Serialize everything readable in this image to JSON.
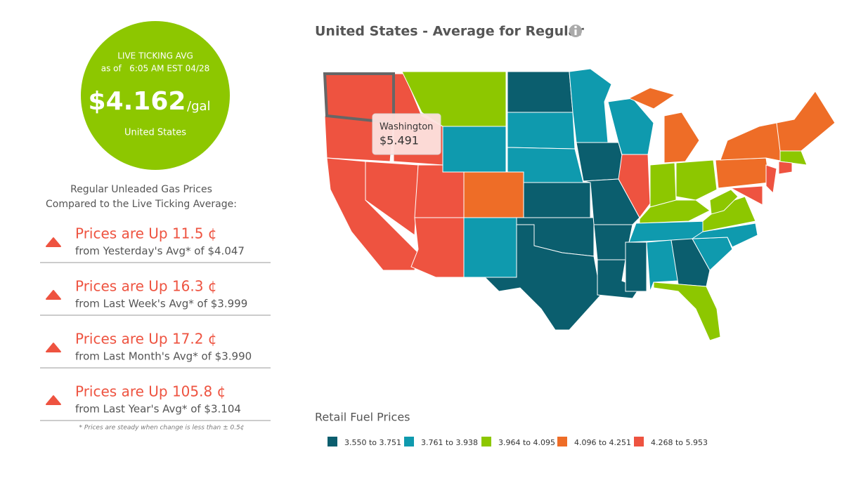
{
  "live_average": {
    "label": "LIVE TICKING AVG",
    "as_of": "as of   6:05 AM EST 04/28",
    "price": "$4.162",
    "unit": "/gal",
    "region": "United States",
    "color": "#8dc700"
  },
  "comparison": {
    "heading": [
      "Regular Unleaded Gas Prices",
      "Compared to the Live Ticking Average:"
    ],
    "items": [
      {
        "headline": "Prices are Up 11.5 ¢",
        "detail": "from Yesterday's Avg* of $4.047"
      },
      {
        "headline": "Prices are Up 16.3 ¢",
        "detail": "from Last Week's Avg* of $3.999"
      },
      {
        "headline": "Prices are Up 17.2 ¢",
        "detail": "from Last Month's Avg* of $3.990"
      },
      {
        "headline": "Prices are Up 105.8 ¢",
        "detail": "from Last Year's Avg* of $3.104"
      }
    ],
    "footnote": "* Prices are steady when change is less than ± 0.5¢"
  },
  "map": {
    "title": "United States - Average for Regular",
    "tooltip": {
      "state": "Washington",
      "price": "$5.491"
    },
    "legend_title": "Retail Fuel Prices",
    "legend": [
      {
        "label": "3.550 to 3.751",
        "color": "#0b5e6e"
      },
      {
        "label": "3.761 to 3.938",
        "color": "#0f9aae"
      },
      {
        "label": "3.964 to 4.095",
        "color": "#8dc700"
      },
      {
        "label": "4.096 to 4.251",
        "color": "#ee6d27"
      },
      {
        "label": "4.268 to 5.953",
        "color": "#ee5340"
      }
    ]
  }
}
